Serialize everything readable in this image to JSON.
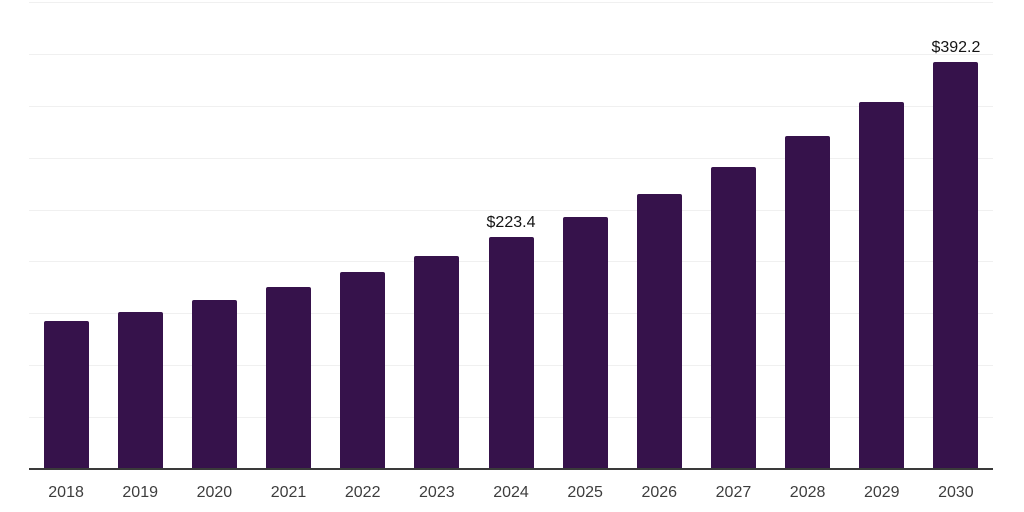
{
  "chart_data": {
    "type": "bar",
    "title": "",
    "xlabel": "",
    "ylabel": "",
    "categories": [
      "2018",
      "2019",
      "2020",
      "2021",
      "2022",
      "2023",
      "2024",
      "2025",
      "2026",
      "2027",
      "2028",
      "2029",
      "2030"
    ],
    "values": [
      142.6,
      151.5,
      163.2,
      175.0,
      189.9,
      205.6,
      223.4,
      243.0,
      265.4,
      290.9,
      320.5,
      353.8,
      392.2
    ],
    "data_labels": [
      null,
      null,
      null,
      null,
      null,
      null,
      "$223.4",
      null,
      null,
      null,
      null,
      null,
      "$392.2"
    ],
    "ylim": [
      0,
      450
    ],
    "gridline_step": 50,
    "grid": true,
    "legend_position": "none",
    "y_tick_labels_visible": false,
    "colors": {
      "bar": "#36124B",
      "axis_line": "#3a3a3a",
      "gridline": "#f0f0f0",
      "tick_label": "#3d3d3d",
      "data_label": "#141414",
      "background": "#ffffff"
    }
  }
}
